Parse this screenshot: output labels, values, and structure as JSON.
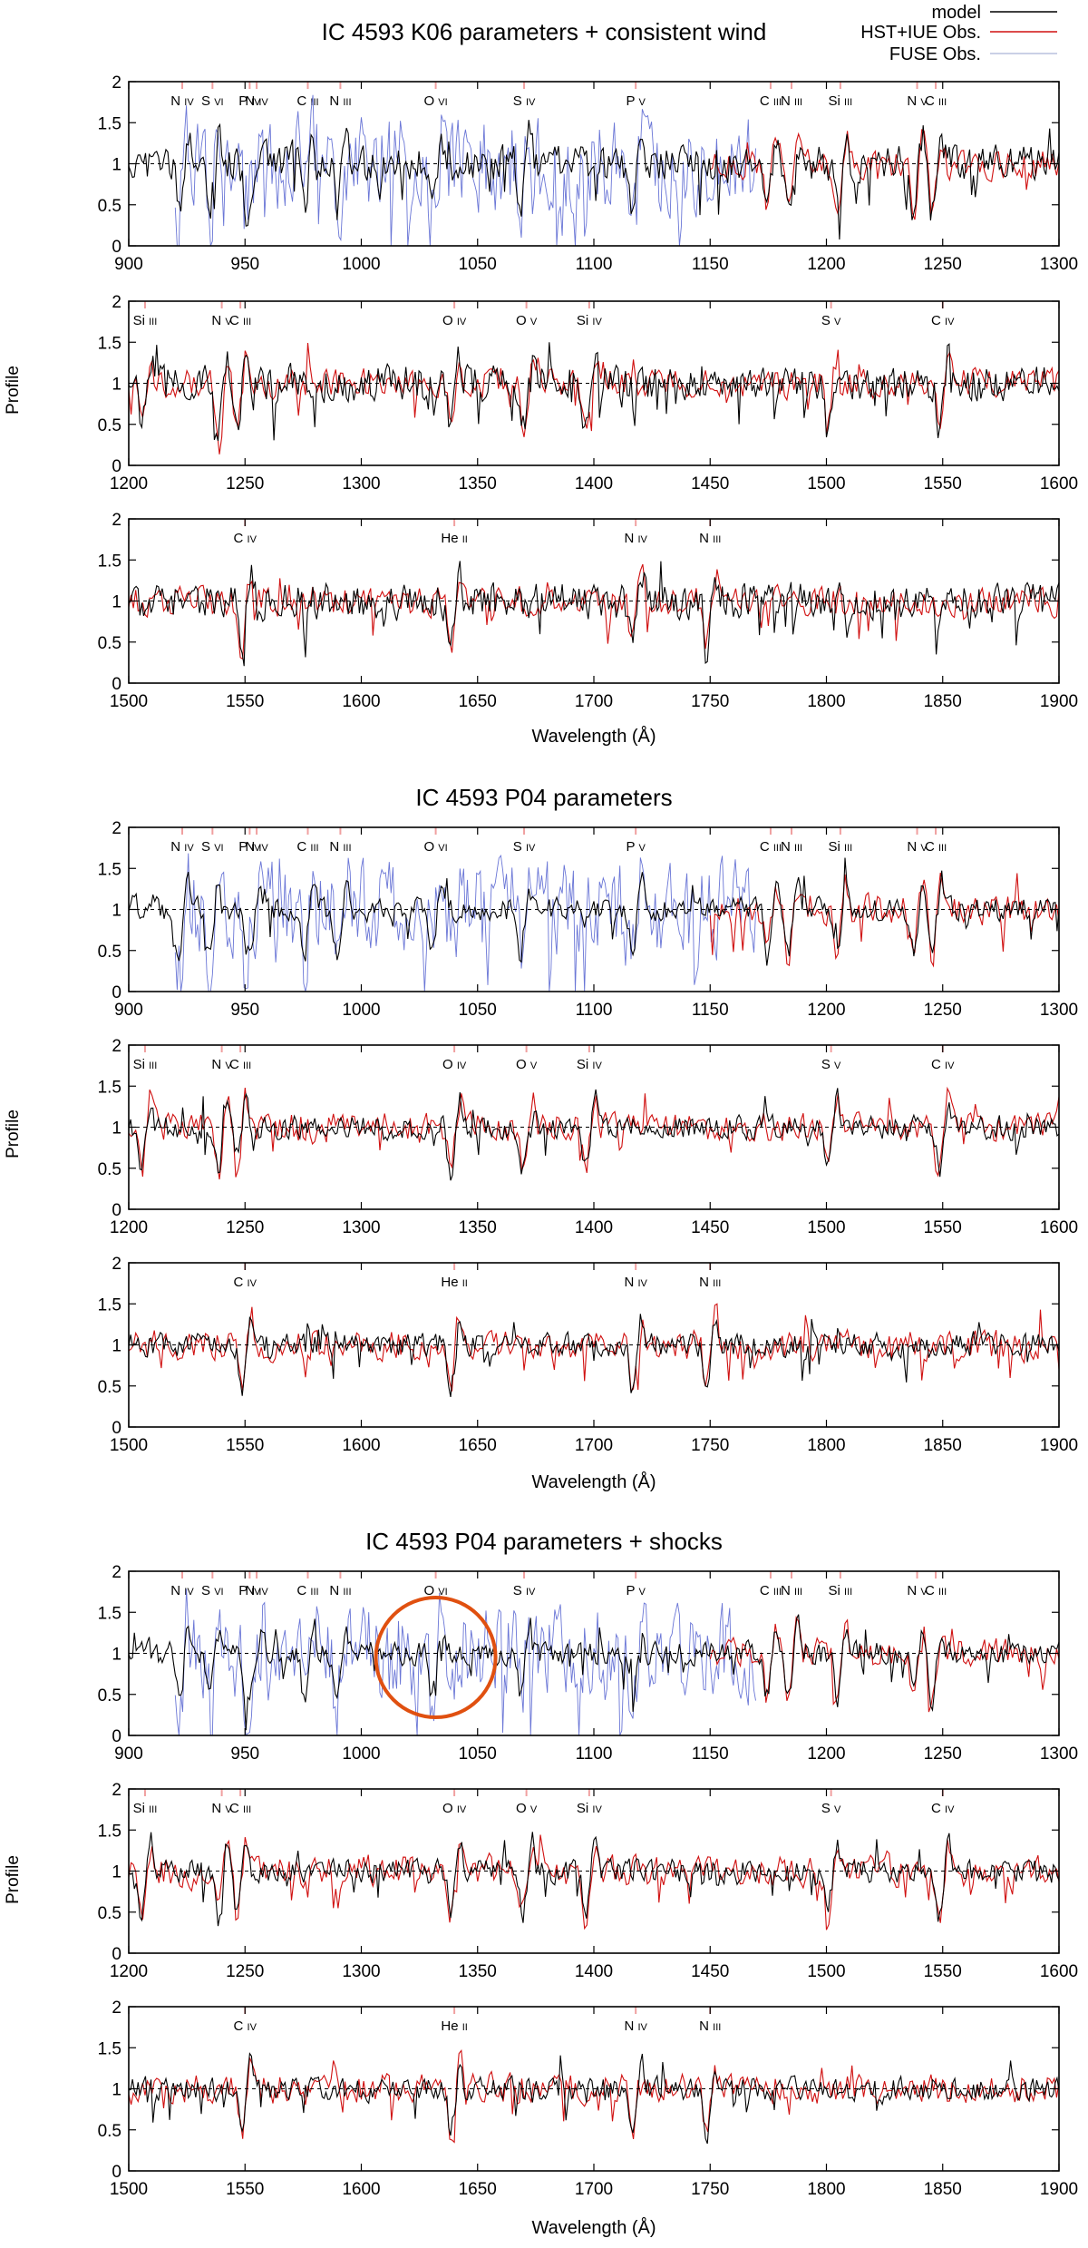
{
  "legend": [
    {
      "label": "model",
      "color": "#000000"
    },
    {
      "label": "HST+IUE Obs.",
      "color": "#d01010"
    },
    {
      "label": "FUSE Obs.",
      "color": "#b8c0dd"
    }
  ],
  "axis_labels": {
    "y": "Profile",
    "x": "Wavelength (Å)"
  },
  "chart_data": [
    {
      "type": "line",
      "title": "IC 4593 K06 parameters + consistent wind",
      "ylabel": "Profile",
      "xlabel": "Wavelength (Å)",
      "panels": [
        {
          "xlim": [
            900,
            1300
          ],
          "xticks": [
            900,
            950,
            1000,
            1050,
            1100,
            1150,
            1200,
            1250,
            1300
          ],
          "ylim": [
            0,
            2
          ],
          "yticks": [
            "0",
            "0.5",
            "1",
            "1.5",
            "2"
          ],
          "fuse_until": 1170,
          "lines": [
            {
              "ion": "N",
              "stage": "IV",
              "x": 923
            },
            {
              "ion": "S",
              "stage": "VI",
              "x": 936
            },
            {
              "ion": "P",
              "stage": "IV",
              "x": 952
            },
            {
              "ion": "N",
              "stage": "IV",
              "x": 955
            },
            {
              "ion": "C",
              "stage": "III",
              "x": 977
            },
            {
              "ion": "N",
              "stage": "III",
              "x": 991
            },
            {
              "ion": "O",
              "stage": "VI",
              "x": 1032
            },
            {
              "ion": "S",
              "stage": "IV",
              "x": 1070
            },
            {
              "ion": "P",
              "stage": "V",
              "x": 1118
            },
            {
              "ion": "C",
              "stage": "III",
              "x": 1176
            },
            {
              "ion": "N",
              "stage": "III",
              "x": 1185
            },
            {
              "ion": "Si",
              "stage": "III",
              "x": 1206
            },
            {
              "ion": "N",
              "stage": "V",
              "x": 1239
            },
            {
              "ion": "C",
              "stage": "III",
              "x": 1247
            }
          ]
        },
        {
          "xlim": [
            1200,
            1600
          ],
          "xticks": [
            1200,
            1250,
            1300,
            1350,
            1400,
            1450,
            1500,
            1550,
            1600
          ],
          "ylim": [
            0,
            2
          ],
          "yticks": [
            "0",
            "0.5",
            "1",
            "1.5",
            "2"
          ],
          "fuse_until": 0,
          "lines": [
            {
              "ion": "Si",
              "stage": "III",
              "x": 1207
            },
            {
              "ion": "N",
              "stage": "V",
              "x": 1240
            },
            {
              "ion": "C",
              "stage": "III",
              "x": 1248
            },
            {
              "ion": "O",
              "stage": "IV",
              "x": 1340
            },
            {
              "ion": "O",
              "stage": "V",
              "x": 1371
            },
            {
              "ion": "Si",
              "stage": "IV",
              "x": 1398
            },
            {
              "ion": "S",
              "stage": "V",
              "x": 1502
            },
            {
              "ion": "C",
              "stage": "IV",
              "x": 1550
            }
          ]
        },
        {
          "xlim": [
            1500,
            1900
          ],
          "xticks": [
            1500,
            1550,
            1600,
            1650,
            1700,
            1750,
            1800,
            1850,
            1900
          ],
          "ylim": [
            0,
            2
          ],
          "yticks": [
            "0",
            "0.5",
            "1",
            "1.5",
            "2"
          ],
          "fuse_until": 0,
          "lines": [
            {
              "ion": "C",
              "stage": "IV",
              "x": 1550
            },
            {
              "ion": "He",
              "stage": "II",
              "x": 1640
            },
            {
              "ion": "N",
              "stage": "IV",
              "x": 1718
            },
            {
              "ion": "N",
              "stage": "III",
              "x": 1750
            }
          ]
        }
      ]
    },
    {
      "type": "line",
      "title": "IC 4593 P04 parameters",
      "ylabel": "Profile",
      "xlabel": "Wavelength (Å)",
      "panels": [
        {
          "xlim": [
            900,
            1300
          ],
          "xticks": [
            900,
            950,
            1000,
            1050,
            1100,
            1150,
            1200,
            1250,
            1300
          ],
          "ylim": [
            0,
            2
          ],
          "yticks": [
            "0",
            "0.5",
            "1",
            "1.5",
            "2"
          ],
          "fuse_until": 1170,
          "lines": [
            {
              "ion": "N",
              "stage": "IV",
              "x": 923
            },
            {
              "ion": "S",
              "stage": "VI",
              "x": 936
            },
            {
              "ion": "P",
              "stage": "IV",
              "x": 952
            },
            {
              "ion": "N",
              "stage": "IV",
              "x": 955
            },
            {
              "ion": "C",
              "stage": "III",
              "x": 977
            },
            {
              "ion": "N",
              "stage": "III",
              "x": 991
            },
            {
              "ion": "O",
              "stage": "VI",
              "x": 1032
            },
            {
              "ion": "S",
              "stage": "IV",
              "x": 1070
            },
            {
              "ion": "P",
              "stage": "V",
              "x": 1118
            },
            {
              "ion": "C",
              "stage": "III",
              "x": 1176
            },
            {
              "ion": "N",
              "stage": "III",
              "x": 1185
            },
            {
              "ion": "Si",
              "stage": "III",
              "x": 1206
            },
            {
              "ion": "N",
              "stage": "V",
              "x": 1239
            },
            {
              "ion": "C",
              "stage": "III",
              "x": 1247
            }
          ]
        },
        {
          "xlim": [
            1200,
            1600
          ],
          "xticks": [
            1200,
            1250,
            1300,
            1350,
            1400,
            1450,
            1500,
            1550,
            1600
          ],
          "ylim": [
            0,
            2
          ],
          "yticks": [
            "0",
            "0.5",
            "1",
            "1.5",
            "2"
          ],
          "fuse_until": 0,
          "lines": [
            {
              "ion": "Si",
              "stage": "III",
              "x": 1207
            },
            {
              "ion": "N",
              "stage": "V",
              "x": 1240
            },
            {
              "ion": "C",
              "stage": "III",
              "x": 1248
            },
            {
              "ion": "O",
              "stage": "IV",
              "x": 1340
            },
            {
              "ion": "O",
              "stage": "V",
              "x": 1371
            },
            {
              "ion": "Si",
              "stage": "IV",
              "x": 1398
            },
            {
              "ion": "S",
              "stage": "V",
              "x": 1502
            },
            {
              "ion": "C",
              "stage": "IV",
              "x": 1550
            }
          ]
        },
        {
          "xlim": [
            1500,
            1900
          ],
          "xticks": [
            1500,
            1550,
            1600,
            1650,
            1700,
            1750,
            1800,
            1850,
            1900
          ],
          "ylim": [
            0,
            2
          ],
          "yticks": [
            "0",
            "0.5",
            "1",
            "1.5",
            "2"
          ],
          "fuse_until": 0,
          "lines": [
            {
              "ion": "C",
              "stage": "IV",
              "x": 1550
            },
            {
              "ion": "He",
              "stage": "II",
              "x": 1640
            },
            {
              "ion": "N",
              "stage": "IV",
              "x": 1718
            },
            {
              "ion": "N",
              "stage": "III",
              "x": 1750
            }
          ]
        }
      ]
    },
    {
      "type": "line",
      "title": "IC 4593 P04 parameters + shocks",
      "ylabel": "Profile",
      "xlabel": "Wavelength (Å)",
      "highlight": {
        "panel": 0,
        "center_x": 1032,
        "center_y": 0.95,
        "note": "O VI region circled"
      },
      "panels": [
        {
          "xlim": [
            900,
            1300
          ],
          "xticks": [
            900,
            950,
            1000,
            1050,
            1100,
            1150,
            1200,
            1250,
            1300
          ],
          "ylim": [
            0,
            2
          ],
          "yticks": [
            "0",
            "0.5",
            "1",
            "1.5",
            "2"
          ],
          "fuse_until": 1170,
          "lines": [
            {
              "ion": "N",
              "stage": "IV",
              "x": 923
            },
            {
              "ion": "S",
              "stage": "VI",
              "x": 936
            },
            {
              "ion": "P",
              "stage": "IV",
              "x": 952
            },
            {
              "ion": "N",
              "stage": "IV",
              "x": 955
            },
            {
              "ion": "C",
              "stage": "III",
              "x": 977
            },
            {
              "ion": "N",
              "stage": "III",
              "x": 991
            },
            {
              "ion": "O",
              "stage": "VI",
              "x": 1032
            },
            {
              "ion": "S",
              "stage": "IV",
              "x": 1070
            },
            {
              "ion": "P",
              "stage": "V",
              "x": 1118
            },
            {
              "ion": "C",
              "stage": "III",
              "x": 1176
            },
            {
              "ion": "N",
              "stage": "III",
              "x": 1185
            },
            {
              "ion": "Si",
              "stage": "III",
              "x": 1206
            },
            {
              "ion": "N",
              "stage": "V",
              "x": 1239
            },
            {
              "ion": "C",
              "stage": "III",
              "x": 1247
            }
          ]
        },
        {
          "xlim": [
            1200,
            1600
          ],
          "xticks": [
            1200,
            1250,
            1300,
            1350,
            1400,
            1450,
            1500,
            1550,
            1600
          ],
          "ylim": [
            0,
            2
          ],
          "yticks": [
            "0",
            "0.5",
            "1",
            "1.5",
            "2"
          ],
          "fuse_until": 0,
          "lines": [
            {
              "ion": "Si",
              "stage": "III",
              "x": 1207
            },
            {
              "ion": "N",
              "stage": "V",
              "x": 1240
            },
            {
              "ion": "C",
              "stage": "III",
              "x": 1248
            },
            {
              "ion": "O",
              "stage": "IV",
              "x": 1340
            },
            {
              "ion": "O",
              "stage": "V",
              "x": 1371
            },
            {
              "ion": "Si",
              "stage": "IV",
              "x": 1398
            },
            {
              "ion": "S",
              "stage": "V",
              "x": 1502
            },
            {
              "ion": "C",
              "stage": "IV",
              "x": 1550
            }
          ]
        },
        {
          "xlim": [
            1500,
            1900
          ],
          "xticks": [
            1500,
            1550,
            1600,
            1650,
            1700,
            1750,
            1800,
            1850,
            1900
          ],
          "ylim": [
            0,
            2
          ],
          "yticks": [
            "0",
            "0.5",
            "1",
            "1.5",
            "2"
          ],
          "fuse_until": 0,
          "lines": [
            {
              "ion": "C",
              "stage": "IV",
              "x": 1550
            },
            {
              "ion": "He",
              "stage": "II",
              "x": 1640
            },
            {
              "ion": "N",
              "stage": "IV",
              "x": 1718
            },
            {
              "ion": "N",
              "stage": "III",
              "x": 1750
            }
          ]
        }
      ]
    }
  ]
}
